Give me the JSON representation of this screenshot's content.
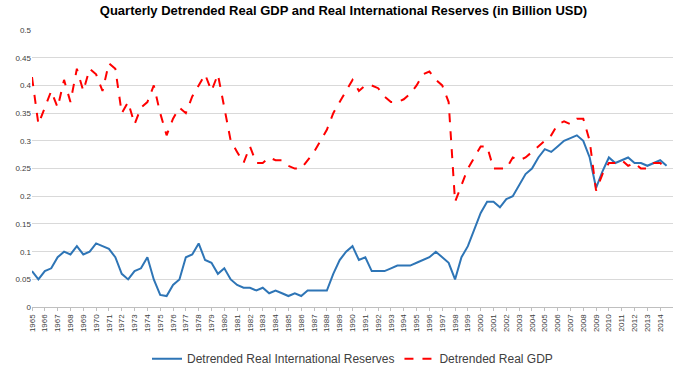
{
  "chart_data": {
    "type": "line",
    "title": "Quarterly Detrended Real GDP and Real International Reserves (in Billion USD)",
    "x": [
      1965,
      1965.5,
      1966,
      1966.5,
      1967,
      1967.5,
      1968,
      1968.5,
      1969,
      1969.5,
      1970,
      1970.5,
      1971,
      1971.5,
      1972,
      1972.5,
      1973,
      1973.5,
      1974,
      1974.5,
      1975,
      1975.5,
      1976,
      1976.5,
      1977,
      1977.5,
      1978,
      1978.5,
      1979,
      1979.5,
      1980,
      1980.5,
      1981,
      1981.5,
      1982,
      1982.5,
      1983,
      1983.5,
      1984,
      1984.5,
      1985,
      1985.5,
      1986,
      1986.5,
      1987,
      1987.5,
      1988,
      1988.5,
      1989,
      1989.5,
      1990,
      1990.5,
      1991,
      1991.5,
      1992,
      1992.5,
      1993,
      1993.5,
      1994,
      1994.5,
      1995,
      1995.5,
      1996,
      1996.5,
      1997,
      1997.5,
      1998,
      1998.5,
      1999,
      1999.5,
      2000,
      2000.5,
      2001,
      2001.5,
      2002,
      2002.5,
      2003,
      2003.5,
      2004,
      2004.5,
      2005,
      2005.5,
      2006,
      2006.5,
      2007,
      2007.5,
      2008,
      2008.5,
      2009,
      2009.5,
      2010,
      2010.5,
      2011,
      2011.5,
      2012,
      2012.5,
      2013,
      2013.5,
      2014,
      2014.5
    ],
    "series": [
      {
        "name": "Detrended Real International Reserves",
        "color": "#2e75b6",
        "line_style": "solid",
        "values": [
          0.065,
          0.05,
          0.065,
          0.07,
          0.09,
          0.1,
          0.095,
          0.11,
          0.095,
          0.1,
          0.115,
          0.11,
          0.105,
          0.09,
          0.06,
          0.05,
          0.065,
          0.07,
          0.09,
          0.05,
          0.022,
          0.02,
          0.04,
          0.05,
          0.09,
          0.095,
          0.115,
          0.085,
          0.08,
          0.06,
          0.07,
          0.05,
          0.04,
          0.035,
          0.035,
          0.03,
          0.035,
          0.025,
          0.03,
          0.025,
          0.02,
          0.025,
          0.02,
          0.03,
          0.03,
          0.03,
          0.03,
          0.06,
          0.085,
          0.1,
          0.11,
          0.085,
          0.09,
          0.065,
          0.065,
          0.065,
          0.07,
          0.075,
          0.075,
          0.075,
          0.08,
          0.085,
          0.09,
          0.1,
          0.09,
          0.08,
          0.05,
          0.09,
          0.11,
          0.14,
          0.17,
          0.19,
          0.19,
          0.18,
          0.195,
          0.2,
          0.22,
          0.24,
          0.25,
          0.27,
          0.285,
          0.28,
          0.29,
          0.3,
          0.305,
          0.31,
          0.3,
          0.27,
          0.215,
          0.245,
          0.27,
          0.26,
          0.265,
          0.27,
          0.26,
          0.26,
          0.255,
          0.26,
          0.265,
          0.255
        ]
      },
      {
        "name": "Detrended Real GDP",
        "color": "#ff0000",
        "line_style": "dash",
        "values": [
          0.415,
          0.33,
          0.36,
          0.39,
          0.36,
          0.41,
          0.37,
          0.43,
          0.39,
          0.43,
          0.42,
          0.39,
          0.44,
          0.43,
          0.35,
          0.37,
          0.33,
          0.36,
          0.37,
          0.4,
          0.35,
          0.31,
          0.34,
          0.36,
          0.35,
          0.38,
          0.4,
          0.42,
          0.39,
          0.42,
          0.36,
          0.3,
          0.28,
          0.26,
          0.29,
          0.26,
          0.26,
          0.27,
          0.265,
          0.265,
          0.255,
          0.25,
          0.25,
          0.265,
          0.28,
          0.3,
          0.32,
          0.35,
          0.37,
          0.39,
          0.41,
          0.39,
          0.4,
          0.4,
          0.395,
          0.38,
          0.37,
          0.37,
          0.375,
          0.385,
          0.4,
          0.42,
          0.425,
          0.41,
          0.4,
          0.37,
          0.19,
          0.22,
          0.25,
          0.27,
          0.29,
          0.29,
          0.25,
          0.25,
          0.25,
          0.27,
          0.265,
          0.27,
          0.28,
          0.29,
          0.3,
          0.31,
          0.33,
          0.335,
          0.33,
          0.34,
          0.34,
          0.3,
          0.21,
          0.24,
          0.26,
          0.26,
          0.265,
          0.255,
          0.26,
          0.25,
          0.25,
          0.26,
          0.26,
          0.25
        ]
      }
    ],
    "xlim": [
      1965,
      2015
    ],
    "xticks": [
      1965,
      1966,
      1967,
      1968,
      1969,
      1970,
      1971,
      1972,
      1973,
      1974,
      1975,
      1976,
      1977,
      1978,
      1979,
      1980,
      1981,
      1982,
      1983,
      1984,
      1985,
      1986,
      1987,
      1988,
      1989,
      1990,
      1991,
      1992,
      1993,
      1994,
      1995,
      1996,
      1997,
      1998,
      1999,
      2000,
      2001,
      2002,
      2003,
      2004,
      2005,
      2006,
      2007,
      2008,
      2009,
      2010,
      2011,
      2012,
      2013,
      2014
    ],
    "ylim": [
      0,
      0.5
    ],
    "yticks": [
      0,
      0.05,
      0.1,
      0.15,
      0.2,
      0.25,
      0.3,
      0.35,
      0.4,
      0.45,
      0.5
    ],
    "grid": true,
    "legend": "bottom"
  }
}
